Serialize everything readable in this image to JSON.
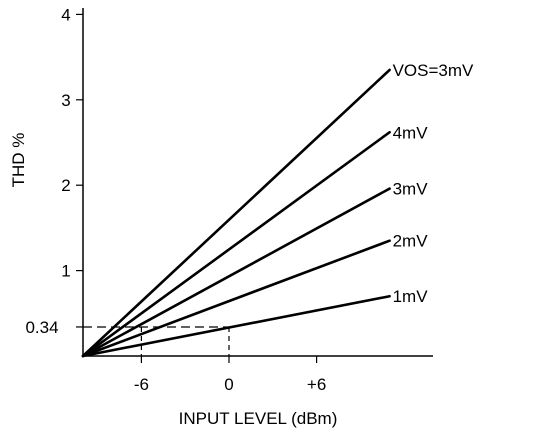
{
  "chart_data": {
    "type": "line",
    "xlabel": "INPUT LEVEL (dBm)",
    "ylabel": "THD %",
    "ylim": [
      0,
      4
    ],
    "xlim": [
      -10,
      11
    ],
    "x_ticks": [
      {
        "value": -6,
        "label": "-6"
      },
      {
        "value": 0,
        "label": "0"
      },
      {
        "value": 6,
        "label": "+6"
      }
    ],
    "y_ticks": [
      {
        "value": 0.34,
        "label": "0.34"
      },
      {
        "value": 1,
        "label": "1"
      },
      {
        "value": 2,
        "label": "2"
      },
      {
        "value": 3,
        "label": "3"
      },
      {
        "value": 4,
        "label": "4"
      }
    ],
    "reference": {
      "x": 0,
      "y": 0.34
    },
    "series": [
      {
        "name": "VOS=3mV",
        "x": [
          -10,
          11
        ],
        "y": [
          0,
          3.35
        ]
      },
      {
        "name": "4mV",
        "x": [
          -10,
          11
        ],
        "y": [
          0,
          2.62
        ]
      },
      {
        "name": "3mV",
        "x": [
          -10,
          11
        ],
        "y": [
          0,
          1.96
        ]
      },
      {
        "name": "2mV",
        "x": [
          -10,
          11
        ],
        "y": [
          0,
          1.35
        ]
      },
      {
        "name": "1mV",
        "x": [
          -10,
          11
        ],
        "y": [
          0,
          0.7
        ]
      }
    ],
    "grid": false,
    "legend": "inline-right"
  }
}
